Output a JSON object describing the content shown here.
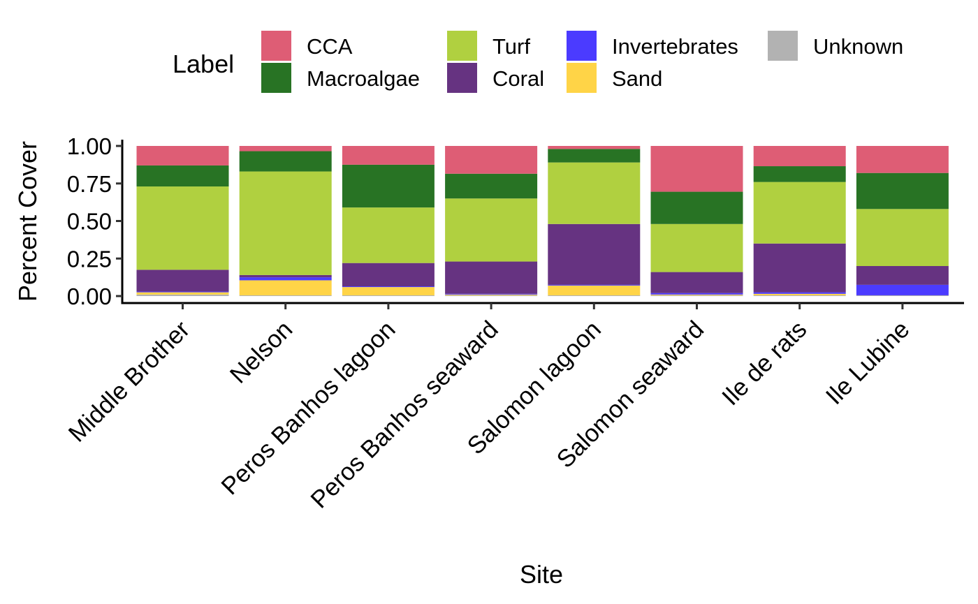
{
  "chart_data": {
    "type": "bar",
    "stacked": true,
    "title": "",
    "xlabel": "Site",
    "ylabel": "Percent Cover",
    "ylim": [
      0,
      1
    ],
    "yticks": [
      "0.00",
      "0.25",
      "0.50",
      "0.75",
      "1.00"
    ],
    "legend_title": "Label",
    "legend_position": "top",
    "categories": [
      "Middle Brother",
      "Nelson",
      "Peros Banhos lagoon",
      "Peros Banhos seaward",
      "Salomon lagoon",
      "Salomon seaward",
      "Ile de rats",
      "Ile Lubine"
    ],
    "series": [
      {
        "name": "Unknown",
        "color": "#b2b2b2",
        "values": [
          0.01,
          0.005,
          0.005,
          0.005,
          0.005,
          0.005,
          0.005,
          0.005
        ]
      },
      {
        "name": "Sand",
        "color": "#ffd447",
        "values": [
          0.015,
          0.1,
          0.055,
          0.005,
          0.065,
          0.005,
          0.01,
          0.0
        ]
      },
      {
        "name": "Invertebrates",
        "color": "#4b3bff",
        "values": [
          0.005,
          0.02,
          0.005,
          0.005,
          0.005,
          0.01,
          0.01,
          0.07
        ]
      },
      {
        "name": "Coral",
        "color": "#663381",
        "values": [
          0.145,
          0.015,
          0.155,
          0.215,
          0.405,
          0.14,
          0.325,
          0.125
        ]
      },
      {
        "name": "Turf",
        "color": "#b0d040",
        "values": [
          0.555,
          0.69,
          0.37,
          0.42,
          0.41,
          0.32,
          0.41,
          0.38
        ]
      },
      {
        "name": "Macroalgae",
        "color": "#287324",
        "values": [
          0.14,
          0.135,
          0.285,
          0.165,
          0.09,
          0.215,
          0.105,
          0.24
        ]
      },
      {
        "name": "CCA",
        "color": "#de5d75",
        "values": [
          0.13,
          0.035,
          0.125,
          0.185,
          0.02,
          0.305,
          0.135,
          0.18
        ]
      }
    ],
    "legend_order": [
      "CCA",
      "Macroalgae",
      "Turf",
      "Coral",
      "Invertebrates",
      "Sand",
      "Unknown"
    ]
  }
}
